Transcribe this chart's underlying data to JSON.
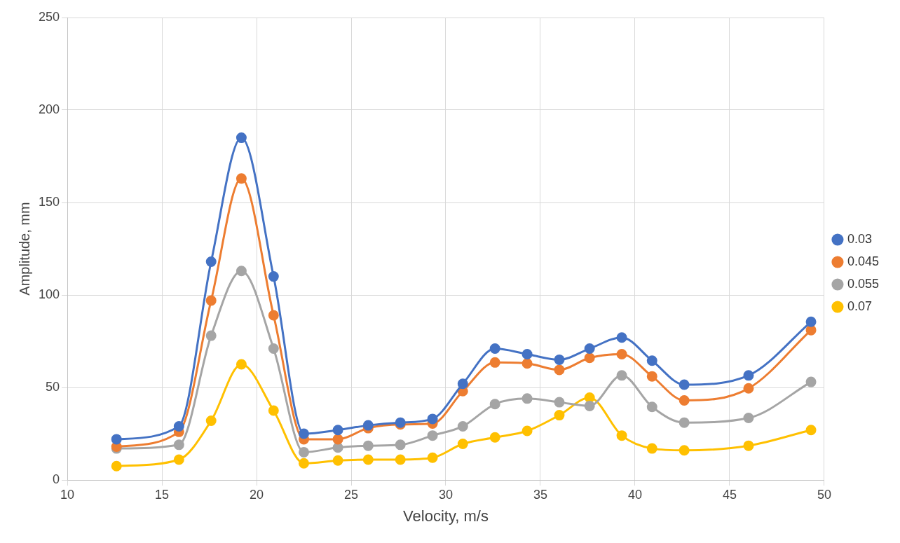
{
  "chart_data": {
    "type": "line",
    "xlabel": "Velocity, m/s",
    "ylabel": "Amplitude, mm",
    "x": [
      12.6,
      15.9,
      17.6,
      19.2,
      20.9,
      22.5,
      24.3,
      25.9,
      27.6,
      29.3,
      30.9,
      32.6,
      34.3,
      36.0,
      37.6,
      39.3,
      40.9,
      42.6,
      46.0,
      49.3
    ],
    "series": [
      {
        "name": "0.03",
        "color": "#4472c4",
        "values": [
          22,
          29,
          118,
          185,
          110,
          25,
          27,
          29.5,
          31,
          33,
          52,
          71,
          68,
          65,
          71,
          77,
          64.5,
          51.5,
          56.5,
          85.5
        ]
      },
      {
        "name": "0.045",
        "color": "#ed7d31",
        "values": [
          18,
          26,
          97,
          163,
          89,
          22,
          22,
          28,
          30,
          30.5,
          48,
          63.5,
          63,
          59.5,
          66,
          68,
          56,
          43,
          49.5,
          81
        ]
      },
      {
        "name": "0.055",
        "color": "#a5a5a5",
        "values": [
          17,
          19,
          78,
          113,
          71,
          15,
          17.5,
          18.5,
          19,
          24,
          29,
          41,
          44,
          42,
          40,
          56.5,
          39.5,
          31,
          33.5,
          53
        ]
      },
      {
        "name": "0.07",
        "color": "#ffc000",
        "values": [
          7.5,
          11,
          32,
          62.5,
          37.5,
          9,
          10.5,
          11,
          11,
          12,
          19.5,
          23,
          26.5,
          35,
          44.5,
          24,
          17,
          16,
          18.5,
          27
        ]
      }
    ],
    "xlim": [
      10,
      50
    ],
    "xticks": [
      10,
      15,
      20,
      25,
      30,
      35,
      40,
      45,
      50
    ],
    "ylim": [
      0,
      250
    ],
    "yticks": [
      0,
      50,
      100,
      150,
      200,
      250
    ],
    "grid": true,
    "legend": "right",
    "marker": "circle",
    "line_style": "solid"
  }
}
